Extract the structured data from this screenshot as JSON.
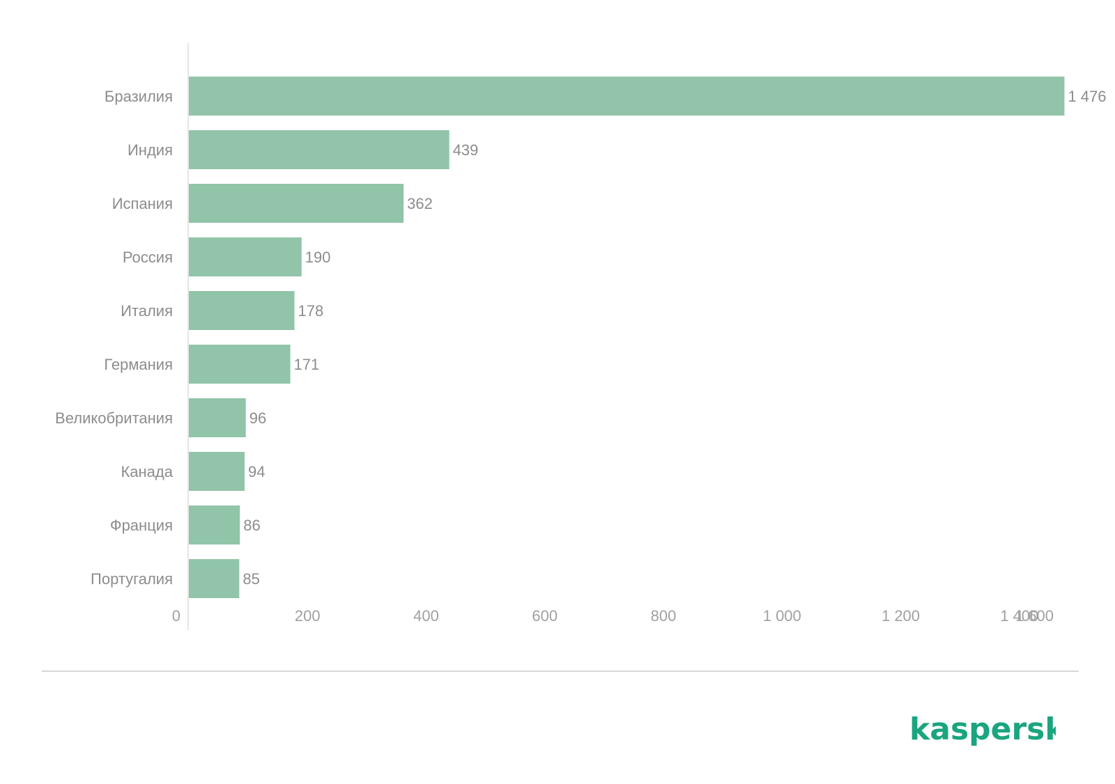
{
  "chart_data": {
    "type": "bar",
    "orientation": "horizontal",
    "categories": [
      "Бразилия",
      "Индия",
      "Испания",
      "Россия",
      "Италия",
      "Германия",
      "Великобритания",
      "Канада",
      "Франция",
      "Португалия"
    ],
    "values": [
      1476,
      439,
      362,
      190,
      178,
      171,
      96,
      94,
      86,
      85
    ],
    "value_labels": [
      "1 476",
      "439",
      "362",
      "190",
      "178",
      "171",
      "96",
      "94",
      "86",
      "85"
    ],
    "xlim": [
      0,
      1600
    ],
    "ticks": [
      0,
      200,
      400,
      600,
      800,
      1000,
      1200,
      1400,
      1600
    ],
    "tick_labels": [
      "0",
      "200",
      "400",
      "600",
      "800",
      "1 000",
      "1 200",
      "1 400",
      "1 600"
    ],
    "grid": false,
    "bar_color": "#91c4a8"
  },
  "footer": {
    "logo_text": "kaspersky",
    "logo_color": "#1aa57f"
  }
}
